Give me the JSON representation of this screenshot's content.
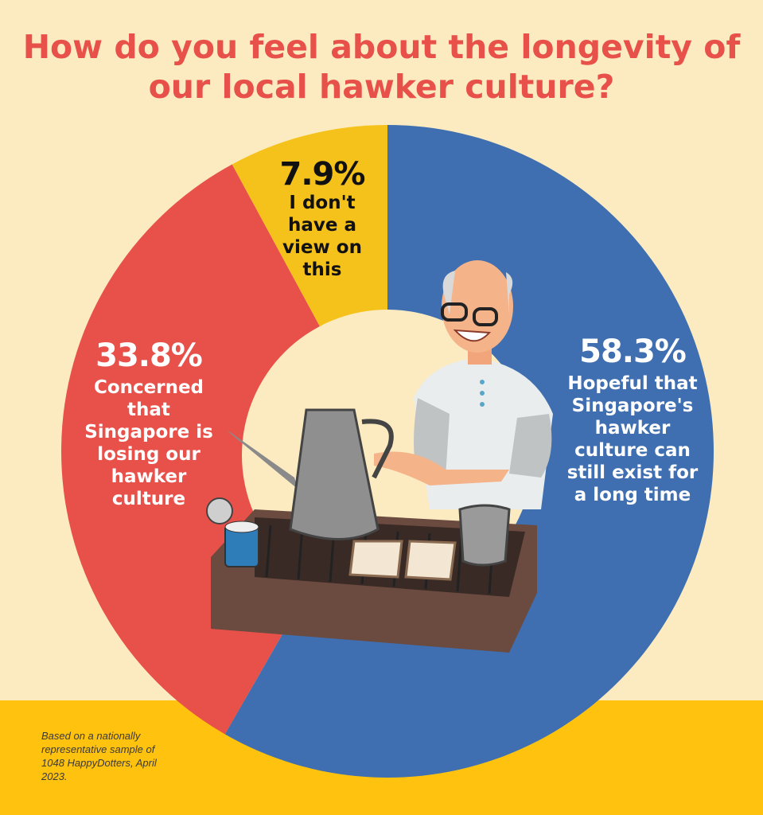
{
  "title": "How do you feel about the longevity of our local hawker culture?",
  "chart_data": {
    "type": "pie",
    "variant": "donut",
    "title": "How do you feel about the longevity of our local hawker culture?",
    "slices": [
      {
        "value": 58.3,
        "label": "58.3%",
        "description": "Hopeful that Singapore's hawker culture can still exist for a long time",
        "color": "#3F6FB0"
      },
      {
        "value": 33.8,
        "label": "33.8%",
        "description": "Concerned that Singapore is losing our hawker culture",
        "color": "#E8504A"
      },
      {
        "value": 7.9,
        "label": "7.9%",
        "description": "I don't have a view on this",
        "color": "#F5C21B"
      }
    ],
    "start": "top",
    "direction": "clockwise"
  },
  "footnote": "Based on a nationally representative sample of 1048 HappyDotters, April 2023.",
  "colors": {
    "background": "#FCEBC0",
    "band": "#FFC20E",
    "title": "#E8504A"
  }
}
